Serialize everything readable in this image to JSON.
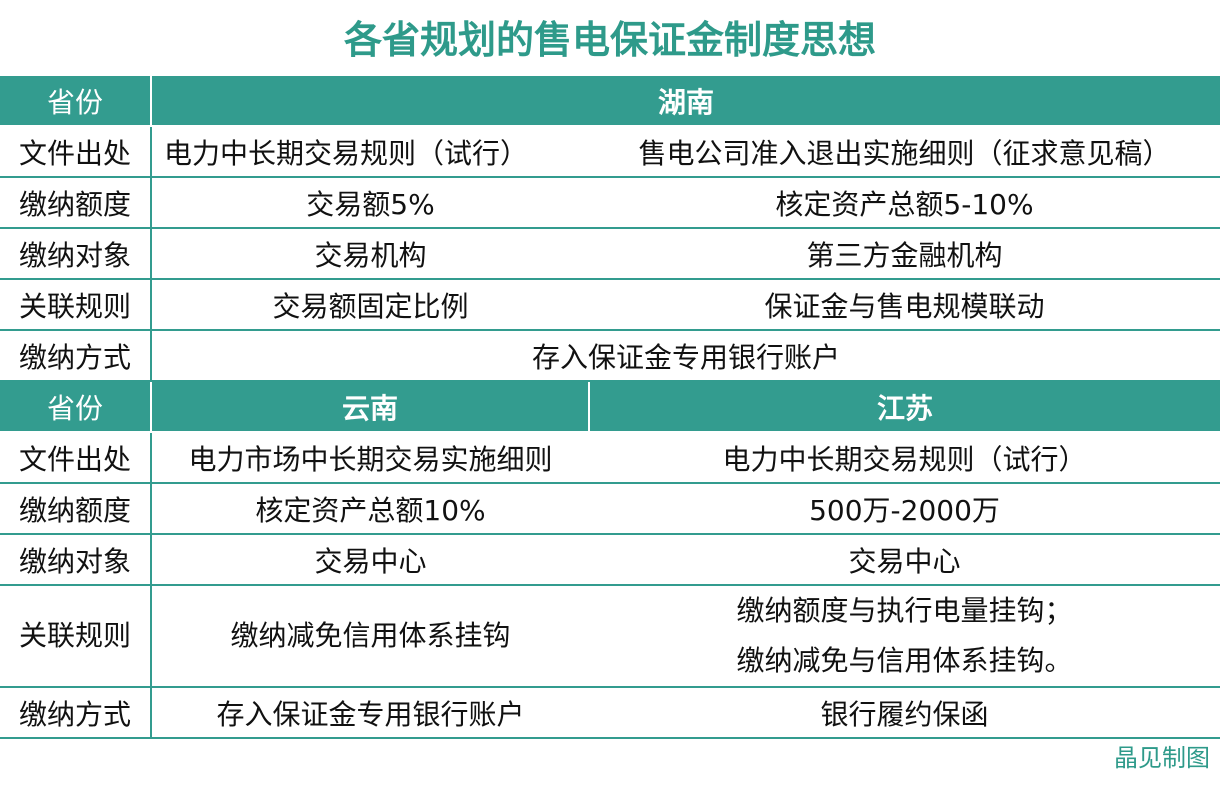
{
  "title": "各省规划的售电保证金制度思想",
  "hunan": {
    "header_label": "省份",
    "province": "湖南",
    "rows": [
      {
        "label": "文件出处",
        "c1": "电力中长期交易规则（试行）",
        "c2": "售电公司准入退出实施细则（征求意见稿）"
      },
      {
        "label": "缴纳额度",
        "c1": "交易额5%",
        "c2": "核定资产总额5-10%"
      },
      {
        "label": "缴纳对象",
        "c1": "交易机构",
        "c2": "第三方金融机构"
      },
      {
        "label": "关联规则",
        "c1": "交易额固定比例",
        "c2": "保证金与售电规模联动"
      },
      {
        "label": "缴纳方式",
        "merged": "存入保证金专用银行账户"
      }
    ]
  },
  "second": {
    "header_label": "省份",
    "province1": "云南",
    "province2": "江苏",
    "rows": [
      {
        "label": "文件出处",
        "c1": "电力市场中长期交易实施细则",
        "c2": "电力中长期交易规则（试行）"
      },
      {
        "label": "缴纳额度",
        "c1": "核定资产总额10%",
        "c2": "500万-2000万"
      },
      {
        "label": "缴纳对象",
        "c1": "交易中心",
        "c2": "交易中心"
      },
      {
        "label": "关联规则",
        "c1": "缴纳减免信用体系挂钩",
        "c2a": "缴纳额度与执行电量挂钩；",
        "c2b": "缴纳减免与信用体系挂钩。"
      },
      {
        "label": "缴纳方式",
        "c1": "存入保证金专用银行账户",
        "c2": "银行履约保函"
      }
    ]
  },
  "source": "晶见制图",
  "colors": {
    "accent": "#339c8f",
    "title": "#2e9a8a"
  }
}
